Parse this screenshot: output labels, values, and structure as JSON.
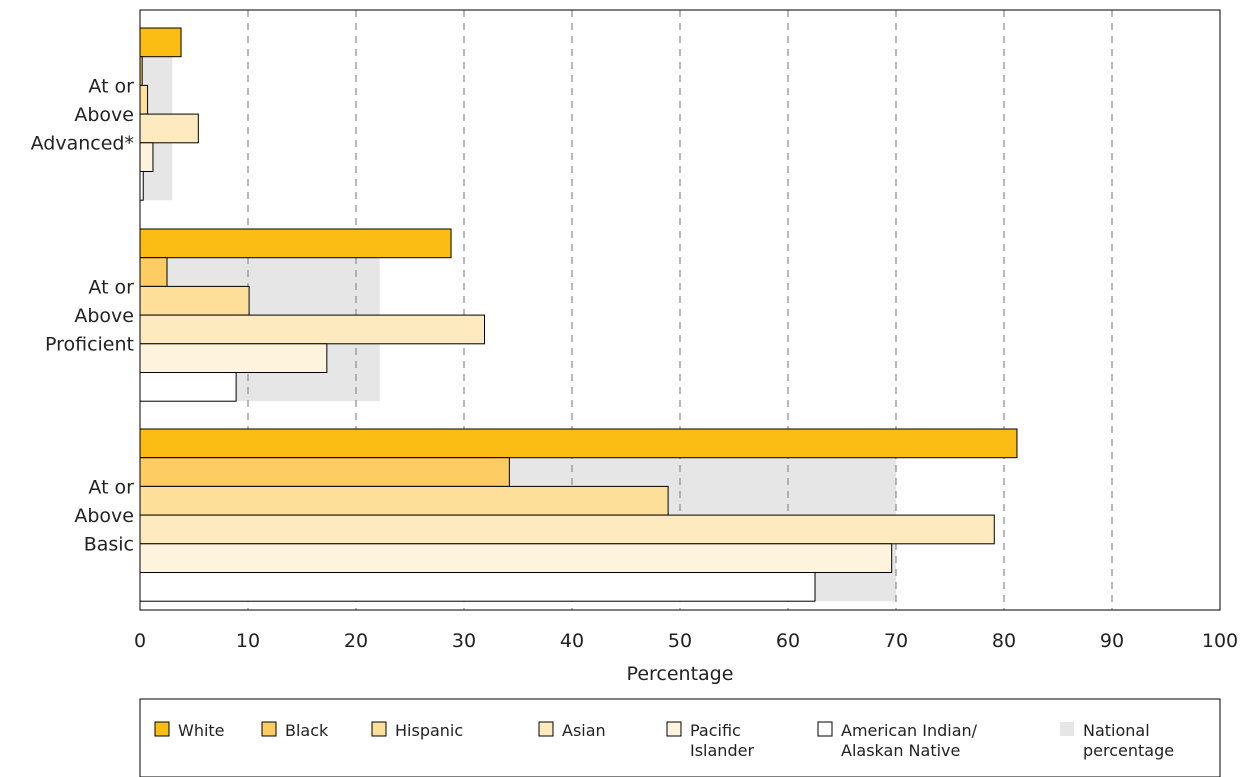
{
  "chart_data": {
    "type": "bar",
    "orientation": "horizontal",
    "xlabel": "Percentage",
    "xlim": [
      0,
      100
    ],
    "xticks": [
      0,
      10,
      20,
      30,
      40,
      50,
      60,
      70,
      80,
      90,
      100
    ],
    "grid": "vertical-dashed",
    "legend_position": "bottom",
    "categories": [
      {
        "label_lines": [
          "At or",
          "Above",
          "Advanced*"
        ],
        "national": 3
      },
      {
        "label_lines": [
          "At or",
          "Above",
          "Proficient"
        ],
        "national": 22.2
      },
      {
        "label_lines": [
          "At or",
          "Above",
          "Basic"
        ],
        "national": 70
      }
    ],
    "series": [
      {
        "name_lines": [
          "White"
        ],
        "color": "#fbbd13",
        "values": [
          3.8,
          28.8,
          81.2
        ]
      },
      {
        "name_lines": [
          "Black"
        ],
        "color": "#fdcd64",
        "values": [
          0.2,
          2.5,
          34.2
        ]
      },
      {
        "name_lines": [
          "Hispanic"
        ],
        "color": "#fedf99",
        "values": [
          0.7,
          10.1,
          48.9
        ]
      },
      {
        "name_lines": [
          "Asian"
        ],
        "color": "#feeabf",
        "values": [
          5.4,
          31.9,
          79.1
        ]
      },
      {
        "name_lines": [
          "Pacific",
          "Islander"
        ],
        "color": "#fef4dd",
        "values": [
          1.2,
          17.3,
          69.6
        ]
      },
      {
        "name_lines": [
          "American Indian/",
          "Alaskan Native"
        ],
        "color": "#ffffff",
        "values": [
          0.3,
          8.9,
          62.5
        ]
      }
    ],
    "national_series": {
      "name_lines": [
        "National",
        "percentage"
      ],
      "color": "#e6e6e6"
    }
  }
}
